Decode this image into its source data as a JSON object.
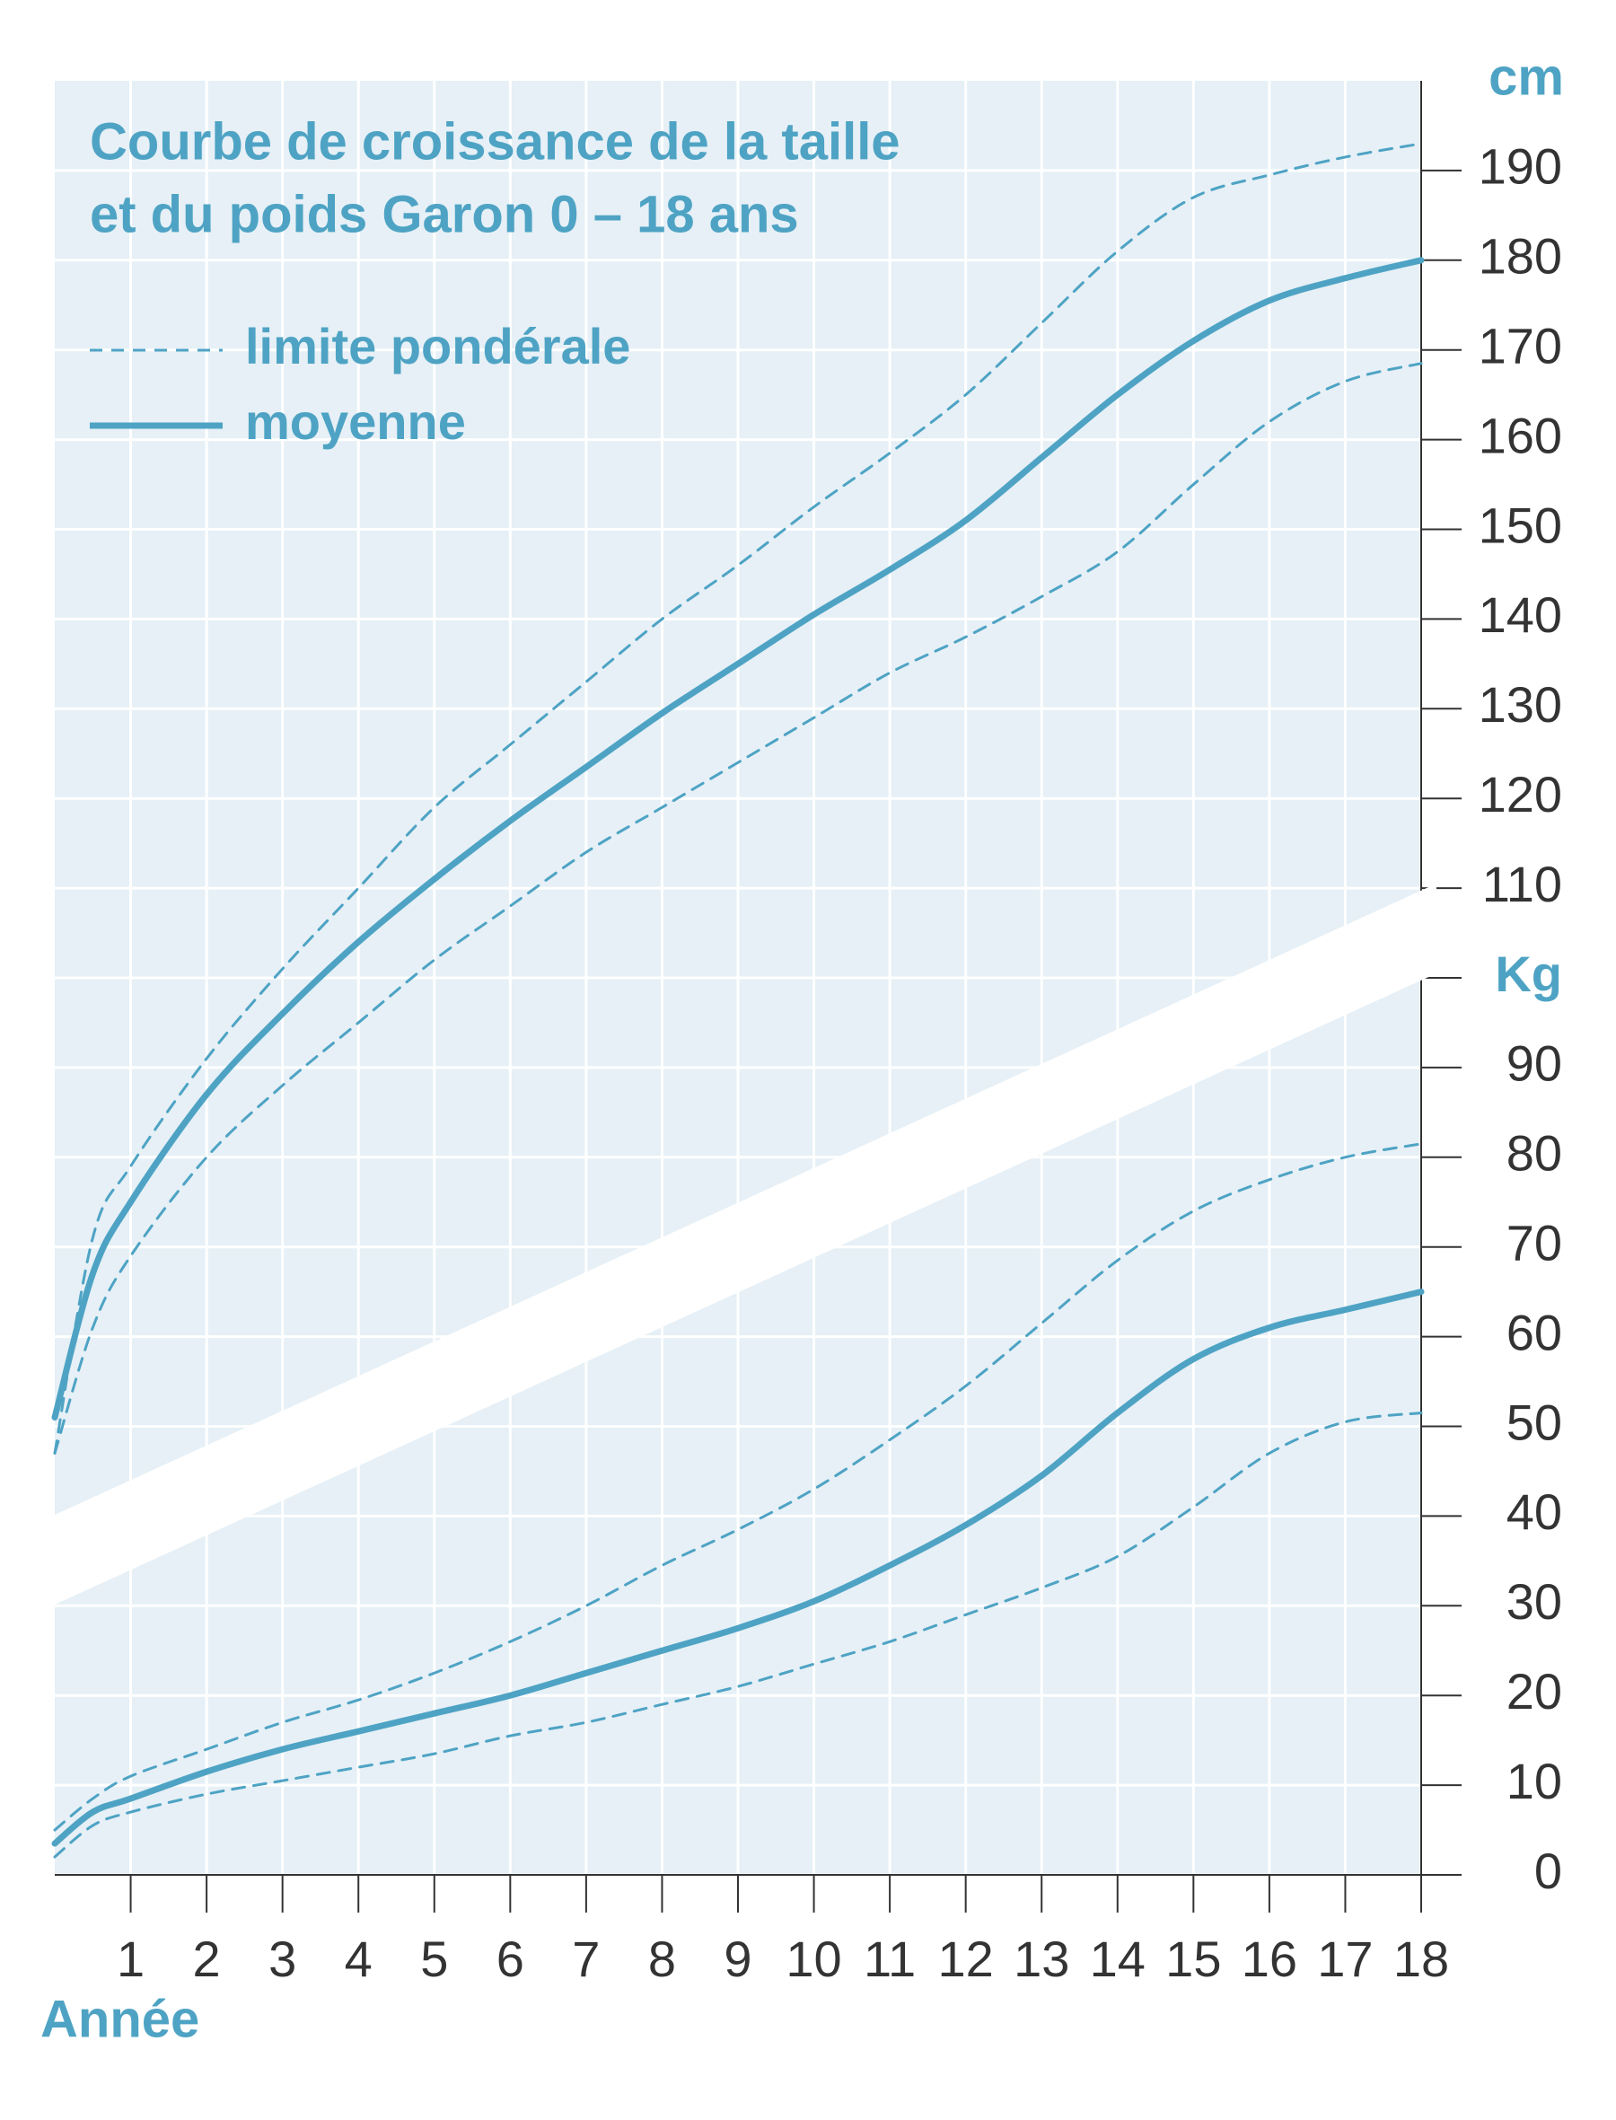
{
  "chart_data": {
    "type": "line",
    "title_lines": [
      "Courbe de croissance de la taille",
      "et du poids Garon 0 – 18 ans"
    ],
    "x_label": "Année",
    "y2_label": "cm",
    "x": [
      0,
      0.5,
      1,
      2,
      3,
      4,
      5,
      6,
      7,
      8,
      9,
      10,
      11,
      12,
      13,
      14,
      15,
      16,
      17,
      18
    ],
    "xlim": [
      0,
      18
    ],
    "xticks": [
      1,
      2,
      3,
      4,
      5,
      6,
      7,
      8,
      9,
      10,
      11,
      12,
      13,
      14,
      15,
      16,
      17,
      18
    ],
    "ylim": [
      0,
      200
    ],
    "yticks": [
      0,
      10,
      20,
      30,
      40,
      50,
      60,
      70,
      80,
      90,
      {
        "value": 100,
        "label": "Kg"
      }
    ],
    "y2lim": [
      0,
      200
    ],
    "y2ticks": [
      110,
      120,
      130,
      140,
      150,
      160,
      170,
      180,
      190
    ],
    "grid": true,
    "series": [
      {
        "name": "limite pondérale",
        "color": "#4ea3c4",
        "dashed": true,
        "axis": "y2",
        "values": [
          47,
          71,
          79,
          91,
          101,
          110,
          119,
          126,
          133,
          140,
          146,
          152.5,
          158.5,
          165,
          173,
          181,
          187,
          189.5,
          191.5,
          193
        ]
      },
      {
        "name": "moyenne",
        "color": "#4ea3c4",
        "dashed": false,
        "axis": "y2",
        "values": [
          51,
          67,
          75,
          87,
          96,
          104,
          111,
          117.5,
          123.5,
          129.5,
          135,
          140.5,
          145.5,
          151,
          158,
          165,
          171,
          175.5,
          178,
          180
        ]
      },
      {
        "name": "limite pondérale",
        "color": "#4ea3c4",
        "dashed": true,
        "axis": "y2",
        "values": [
          47,
          61,
          69,
          80,
          88,
          95,
          102,
          108,
          114,
          119,
          124,
          129,
          134,
          138,
          142.5,
          147.5,
          155,
          162,
          166.5,
          168.5
        ]
      },
      {
        "name": "limite pondérale",
        "color": "#4ea3c4",
        "dashed": true,
        "values": [
          5,
          8.5,
          11,
          14,
          17,
          19.5,
          22.5,
          26,
          30,
          34.5,
          38.5,
          43,
          48.5,
          54.5,
          61.5,
          68.5,
          74,
          77.5,
          80,
          81.5
        ]
      },
      {
        "name": "moyenne",
        "color": "#4ea3c4",
        "dashed": false,
        "values": [
          3.5,
          7,
          8.5,
          11.5,
          14,
          16,
          18,
          20,
          22.5,
          25,
          27.5,
          30.5,
          34.5,
          39,
          44.5,
          51.5,
          57.5,
          61,
          63,
          65
        ]
      },
      {
        "name": "limite pondérale",
        "color": "#4ea3c4",
        "dashed": true,
        "values": [
          2,
          5.5,
          7,
          9,
          10.5,
          12,
          13.5,
          15.5,
          17,
          19,
          21,
          23.5,
          26,
          29,
          32,
          35.5,
          41,
          47,
          50.5,
          51.5
        ]
      }
    ]
  }
}
